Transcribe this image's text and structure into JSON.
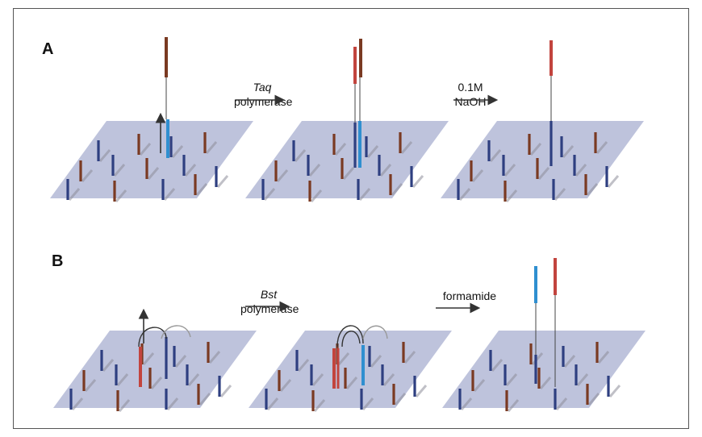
{
  "panels": [
    {
      "label": "A"
    },
    {
      "label": "B"
    }
  ],
  "steps": {
    "a1": {
      "italic": "Taq",
      "text": "polymerase"
    },
    "a2": {
      "line1": "0.1M",
      "line2": "NaOH"
    },
    "b1": {
      "italic": "Bst",
      "text": "polymerase"
    },
    "b2": {
      "text": "formamide"
    }
  },
  "colors": {
    "plate": "#b3b9d6",
    "blue_probe": "#2e3f80",
    "brown_probe": "#7a3a22",
    "red_strand": "#c2443e",
    "light_blue_strand": "#2f8fd0",
    "shadow": "#8e8e9a"
  }
}
